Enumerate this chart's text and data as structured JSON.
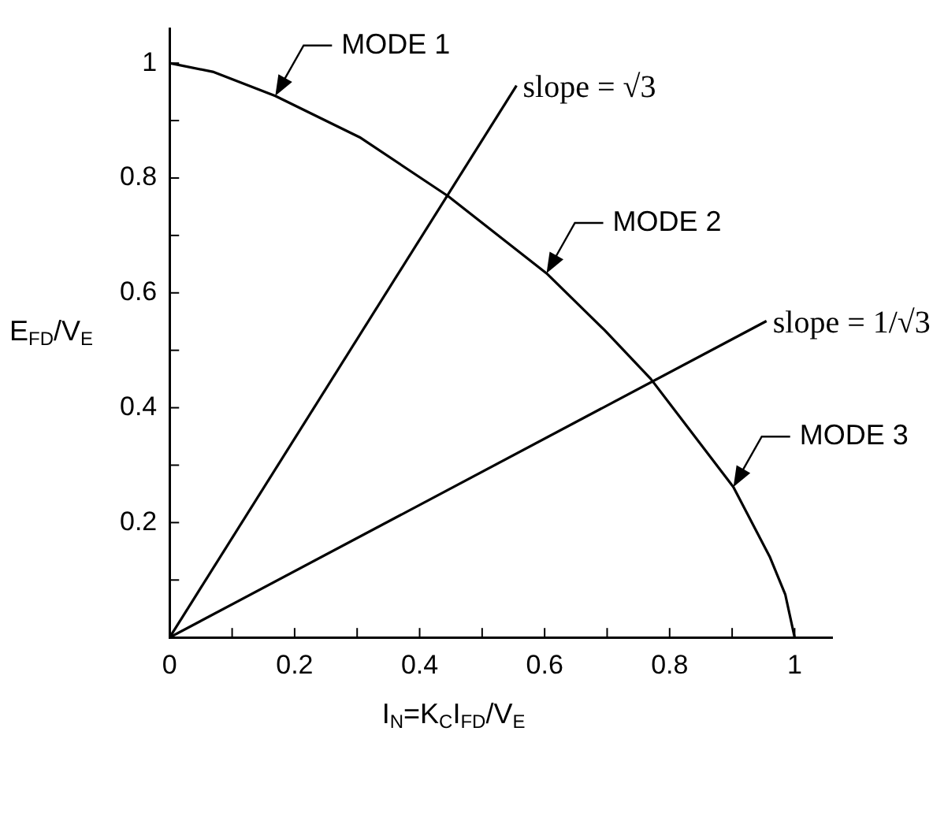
{
  "chart_data": {
    "type": "line",
    "xlabel": "I$_{N}$=K$_{C}$I$_{FD}$/V$_{E}$",
    "ylabel": "E$_{FD}$/V$_{E}$",
    "xlim": [
      0,
      1.06
    ],
    "ylim": [
      0,
      1.06
    ],
    "xticks": [
      0,
      {
        "value": 0.1,
        "label": null
      },
      0.2,
      {
        "value": 0.3,
        "label": null
      },
      0.4,
      {
        "value": 0.5,
        "label": null
      },
      0.6,
      {
        "value": 0.7,
        "label": null
      },
      0.8,
      {
        "value": 0.9,
        "label": null
      },
      1
    ],
    "yticks": [
      {
        "value": 0,
        "label": null
      },
      {
        "value": 0.1,
        "label": null
      },
      0.2,
      {
        "value": 0.3,
        "label": null
      },
      0.4,
      {
        "value": 0.5,
        "label": null
      },
      0.6,
      {
        "value": 0.7,
        "label": null
      },
      0.8,
      {
        "value": 0.9,
        "label": null
      },
      1
    ],
    "series": [
      {
        "color": "#000000",
        "x": [
          0,
          0.069,
          0.169,
          0.304,
          0.446,
          0.603,
          0.696,
          0.77,
          0.902,
          0.96,
          0.985,
          1
        ],
        "values": [
          1,
          0.985,
          0.943,
          0.871,
          0.768,
          0.634,
          0.535,
          0.45,
          0.262,
          0.141,
          0.075,
          0
        ]
      },
      {
        "color": "#000000",
        "x": [
          0,
          0.555
        ],
        "values": [
          0,
          0.961
        ]
      },
      {
        "color": "#000000",
        "x": [
          0,
          0.955
        ],
        "values": [
          0,
          0.551
        ]
      }
    ],
    "annotations": [
      {
        "text": "MODE 1",
        "x": 0.169,
        "y": 0.943
      },
      {
        "text": "MODE 2",
        "x": 0.603,
        "y": 0.634
      },
      {
        "text": "MODE 3",
        "x": 0.902,
        "y": 0.262
      },
      {
        "text": "slope = √3",
        "x": 0.555,
        "y": 0.961
      },
      {
        "text": "slope = 1/√3",
        "x": 0.955,
        "y": 0.551
      }
    ],
    "grid": false,
    "legend": false,
    "marker": "none",
    "line_style": "solid"
  }
}
